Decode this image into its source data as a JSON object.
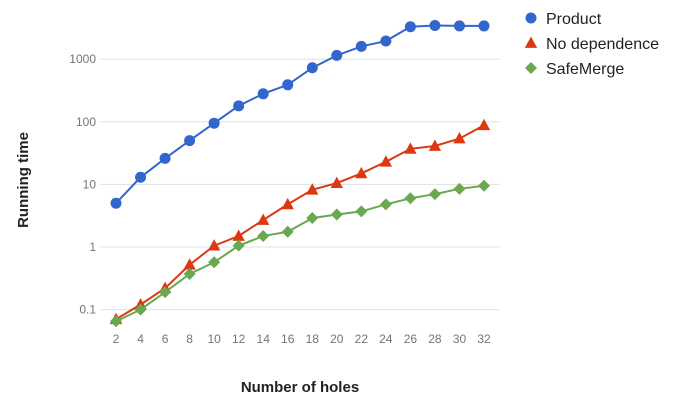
{
  "chart_data": {
    "type": "line",
    "xlabel": "Number of holes",
    "ylabel": "Running time",
    "x": [
      2,
      4,
      6,
      8,
      10,
      12,
      14,
      16,
      18,
      20,
      22,
      24,
      26,
      28,
      30,
      32
    ],
    "x_tick_labels": [
      "2",
      "4",
      "6",
      "8",
      "10",
      "12",
      "14",
      "16",
      "18",
      "20",
      "22",
      "24",
      "26",
      "28",
      "30",
      "32"
    ],
    "y_scale": "log",
    "ylim": [
      0.05,
      5000
    ],
    "y_tick_values": [
      0.1,
      1,
      10,
      100,
      1000
    ],
    "y_tick_labels": [
      "0.1",
      "1",
      "10",
      "100",
      "1000"
    ],
    "grid": true,
    "legend_position": "right",
    "series": [
      {
        "name": "Product",
        "color": "#3366cc",
        "marker": "circle",
        "values": [
          5,
          13,
          26,
          50,
          95,
          180,
          280,
          390,
          730,
          1150,
          1600,
          1950,
          3300,
          3450,
          3400,
          3400
        ]
      },
      {
        "name": "No dependence",
        "color": "#dc3912",
        "marker": "triangle",
        "values": [
          0.07,
          0.12,
          0.22,
          0.52,
          1.05,
          1.5,
          2.7,
          4.8,
          8.2,
          10.5,
          15,
          23,
          37,
          41,
          54,
          88
        ]
      },
      {
        "name": "SafeMerge",
        "color": "#6aa84f",
        "marker": "diamond",
        "values": [
          0.065,
          0.1,
          0.19,
          0.37,
          0.57,
          1.05,
          1.5,
          1.75,
          2.9,
          3.3,
          3.7,
          4.8,
          6.0,
          7.0,
          8.5,
          9.5
        ]
      }
    ]
  }
}
